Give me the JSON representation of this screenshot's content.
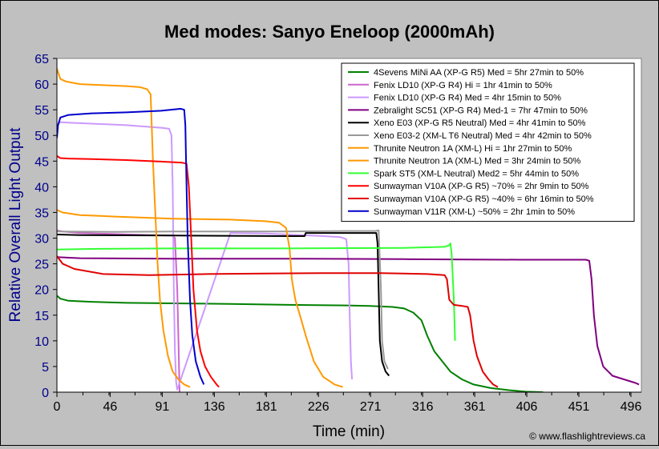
{
  "chart_data": {
    "type": "line",
    "title": "Med modes: Sanyo Eneloop (2000mAh)",
    "xlabel": "Time (min)",
    "ylabel": "Relative Overall Light Output",
    "xlim": [
      0,
      505
    ],
    "ylim": [
      0,
      65
    ],
    "xticks": [
      0,
      46,
      91,
      136,
      181,
      226,
      271,
      316,
      361,
      406,
      451,
      496
    ],
    "yticks": [
      0,
      5,
      10,
      15,
      20,
      25,
      30,
      35,
      40,
      45,
      50,
      55,
      60,
      65
    ],
    "grid": false,
    "legend_position": "top-right",
    "credit": "© www.flashlightreviews.ca",
    "series": [
      {
        "name": "4Sevens MiNi AA (XP-G R5) Med = 5hr 27min to 50%",
        "color": "#008000",
        "points": [
          [
            0,
            18.8
          ],
          [
            3,
            18.2
          ],
          [
            10,
            17.8
          ],
          [
            30,
            17.6
          ],
          [
            60,
            17.4
          ],
          [
            100,
            17.3
          ],
          [
            150,
            17.2
          ],
          [
            200,
            17.0
          ],
          [
            250,
            16.9
          ],
          [
            270,
            16.8
          ],
          [
            280,
            16.7
          ],
          [
            290,
            16.6
          ],
          [
            300,
            16.3
          ],
          [
            308,
            15.5
          ],
          [
            315,
            14
          ],
          [
            320,
            11
          ],
          [
            326,
            8
          ],
          [
            333,
            6
          ],
          [
            340,
            4
          ],
          [
            350,
            2.5
          ],
          [
            360,
            1.5
          ],
          [
            375,
            0.8
          ],
          [
            390,
            0.4
          ],
          [
            405,
            0.1
          ],
          [
            420,
            0
          ]
        ]
      },
      {
        "name": "Fenix LD10 (XP-G R4) Hi = 1hr 41min to 50%",
        "color": "#cc66cc",
        "points": [
          [
            0,
            31.5
          ],
          [
            5,
            31.3
          ],
          [
            20,
            31
          ],
          [
            50,
            30.8
          ],
          [
            80,
            30.6
          ],
          [
            100,
            30.5
          ],
          [
            102,
            30
          ],
          [
            104,
            20
          ],
          [
            105,
            10
          ],
          [
            106,
            0
          ]
        ]
      },
      {
        "name": "Fenix LD10 (XP-G R4) Med = 4hr 15min to 50%",
        "color": "#cc99ff",
        "points": [
          [
            0,
            52
          ],
          [
            3,
            52.6
          ],
          [
            10,
            52.5
          ],
          [
            30,
            52.3
          ],
          [
            60,
            52
          ],
          [
            90,
            51.5
          ],
          [
            97,
            51.3
          ],
          [
            99,
            50
          ],
          [
            100,
            40
          ],
          [
            101,
            20
          ],
          [
            102,
            8
          ],
          [
            103,
            2
          ],
          [
            104,
            0.5
          ],
          [
            150,
            31
          ],
          [
            180,
            30.9
          ],
          [
            200,
            30.7
          ],
          [
            230,
            30.4
          ],
          [
            245,
            30.2
          ],
          [
            250,
            29.8
          ],
          [
            252,
            25
          ],
          [
            253,
            15
          ],
          [
            254,
            6
          ],
          [
            255,
            2.5
          ]
        ]
      },
      {
        "name": "Zebralight SC51 (XP-G R4) Med-1 = 7hr 47min to 50%",
        "color": "#800080",
        "points": [
          [
            0,
            26.3
          ],
          [
            20,
            26.1
          ],
          [
            100,
            26
          ],
          [
            200,
            26
          ],
          [
            300,
            25.9
          ],
          [
            400,
            25.8
          ],
          [
            457,
            25.8
          ],
          [
            460,
            25.6
          ],
          [
            462,
            22
          ],
          [
            464,
            15
          ],
          [
            467,
            9
          ],
          [
            472,
            5
          ],
          [
            480,
            3.2
          ],
          [
            490,
            2.5
          ],
          [
            500,
            1.8
          ],
          [
            503,
            1.5
          ]
        ]
      },
      {
        "name": "Xeno E03 (XP-G R5 Neutral) Med = 4hr 41min to 50%",
        "color": "#000000",
        "points": [
          [
            0,
            30.7
          ],
          [
            20,
            30.6
          ],
          [
            100,
            30.5
          ],
          [
            200,
            30.4
          ],
          [
            214,
            30.4
          ],
          [
            215,
            31
          ],
          [
            250,
            31
          ],
          [
            276,
            31
          ],
          [
            277,
            29
          ],
          [
            278,
            20
          ],
          [
            279,
            10
          ],
          [
            281,
            6
          ],
          [
            284,
            4
          ],
          [
            287,
            3.2
          ]
        ]
      },
      {
        "name": "Xeno E03-2 (XM-L T6 Neutral) Med = 4hr 42min to 50%",
        "color": "#999999",
        "points": [
          [
            0,
            31.3
          ],
          [
            50,
            31.2
          ],
          [
            100,
            31.3
          ],
          [
            150,
            31.3
          ],
          [
            200,
            31.3
          ],
          [
            250,
            31.4
          ],
          [
            275,
            31.4
          ],
          [
            278,
            31.5
          ],
          [
            280,
            20
          ],
          [
            281,
            10
          ],
          [
            283,
            6
          ],
          [
            286,
            4.5
          ]
        ]
      },
      {
        "name": "Thrunite Neutron 1A (XM-L) Hi = 1hr 27min to 50%",
        "color": "#ff9900",
        "points": [
          [
            0,
            63
          ],
          [
            3,
            61
          ],
          [
            8,
            60.5
          ],
          [
            20,
            60
          ],
          [
            40,
            59.8
          ],
          [
            60,
            59.6
          ],
          [
            72,
            59.4
          ],
          [
            78,
            59
          ],
          [
            81,
            58
          ],
          [
            83,
            45
          ],
          [
            85,
            35
          ],
          [
            87,
            25
          ],
          [
            89,
            18
          ],
          [
            92,
            12
          ],
          [
            96,
            7
          ],
          [
            100,
            4
          ],
          [
            105,
            2.5
          ],
          [
            110,
            1.5
          ],
          [
            115,
            1
          ]
        ]
      },
      {
        "name": "Thrunite Neutron 1A (XM-L) Med = 3hr 24min to 50%",
        "color": "#ff9900",
        "points": [
          [
            0,
            35.5
          ],
          [
            5,
            35
          ],
          [
            20,
            34.5
          ],
          [
            50,
            34.2
          ],
          [
            100,
            33.8
          ],
          [
            150,
            33.6
          ],
          [
            180,
            33.3
          ],
          [
            192,
            33
          ],
          [
            198,
            32
          ],
          [
            201,
            28
          ],
          [
            203,
            22
          ],
          [
            206,
            18
          ],
          [
            210,
            15
          ],
          [
            215,
            11
          ],
          [
            222,
            6
          ],
          [
            230,
            3
          ],
          [
            240,
            1.5
          ],
          [
            247,
            1
          ]
        ]
      },
      {
        "name": "Spark ST5 (XM-L Neutral) Med2 = 5hr 44min to 50%",
        "color": "#33ff33",
        "points": [
          [
            0,
            27.8
          ],
          [
            30,
            27.9
          ],
          [
            100,
            28
          ],
          [
            200,
            28
          ],
          [
            300,
            28.1
          ],
          [
            335,
            28.3
          ],
          [
            339,
            28.6
          ],
          [
            340,
            29
          ],
          [
            341,
            27
          ],
          [
            343,
            18
          ],
          [
            344,
            10
          ]
        ]
      },
      {
        "name": "Sunwayman V10A (XP-G R5) ~70% = 2hr 9min to 50%",
        "color": "#ff0000",
        "points": [
          [
            0,
            46
          ],
          [
            3,
            45.6
          ],
          [
            10,
            45.5
          ],
          [
            30,
            45.4
          ],
          [
            60,
            45.2
          ],
          [
            90,
            44.9
          ],
          [
            108,
            44.7
          ],
          [
            112,
            44.5
          ],
          [
            114,
            40
          ],
          [
            116,
            30
          ],
          [
            118,
            20
          ],
          [
            121,
            12
          ],
          [
            124,
            8
          ],
          [
            128,
            5
          ],
          [
            133,
            3
          ],
          [
            138,
            1.5
          ],
          [
            140,
            1
          ]
        ]
      },
      {
        "name": "Sunwayman V10A (XP-G R5) ~40% = 6hr 16min to 50%",
        "color": "#e00000",
        "points": [
          [
            0,
            26.5
          ],
          [
            5,
            25
          ],
          [
            15,
            24
          ],
          [
            40,
            23
          ],
          [
            80,
            22.8
          ],
          [
            130,
            23
          ],
          [
            180,
            23.1
          ],
          [
            230,
            23.2
          ],
          [
            280,
            23.2
          ],
          [
            320,
            23
          ],
          [
            335,
            22.8
          ],
          [
            337,
            22
          ],
          [
            339,
            18
          ],
          [
            343,
            17
          ],
          [
            350,
            16.8
          ],
          [
            355,
            16.6
          ],
          [
            357,
            15
          ],
          [
            360,
            10
          ],
          [
            363,
            7
          ],
          [
            368,
            4
          ],
          [
            373,
            2.5
          ],
          [
            377,
            1.5
          ],
          [
            381,
            1
          ]
        ]
      },
      {
        "name": "Sunwayman V11R (XM-L) ~50% = 2hr 1min to 50%",
        "color": "#0000cc",
        "points": [
          [
            0,
            49.5
          ],
          [
            1,
            52
          ],
          [
            3,
            53.5
          ],
          [
            10,
            54
          ],
          [
            30,
            54.3
          ],
          [
            60,
            54.5
          ],
          [
            90,
            54.8
          ],
          [
            107,
            55.2
          ],
          [
            110,
            55
          ],
          [
            111,
            52
          ],
          [
            112,
            40
          ],
          [
            113,
            30
          ],
          [
            115,
            18
          ],
          [
            117,
            11
          ],
          [
            120,
            6
          ],
          [
            124,
            3
          ],
          [
            127,
            1.5
          ]
        ]
      }
    ]
  }
}
